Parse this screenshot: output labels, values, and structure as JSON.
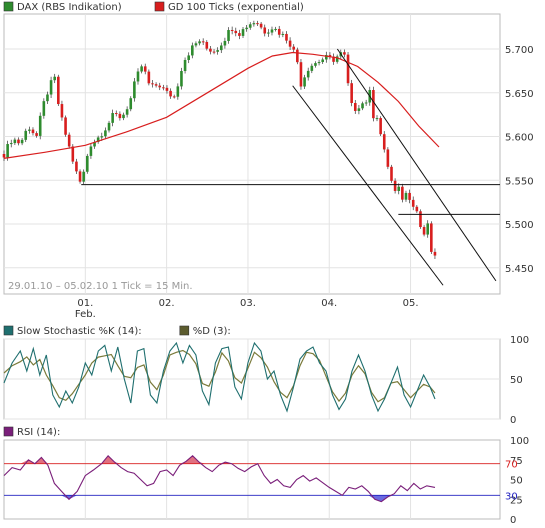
{
  "chart_data": [
    {
      "type": "candlestick",
      "legend": [
        {
          "label": "DAX (RBS Indikation)",
          "color": "#2e8b2e"
        },
        {
          "label": "GD 100 Ticks (exponential)",
          "color": "#d81e1e"
        }
      ],
      "caption": "29.01.10 – 05.02.10   1 Tick = 15 Min.",
      "ylim": [
        5420,
        5740
      ],
      "y_ticks": [
        5450,
        5500,
        5550,
        5600,
        5650,
        5700
      ],
      "y_tick_labels": [
        "5.450",
        "5.500",
        "5.550",
        "5.600",
        "5.650",
        "5.700"
      ],
      "x_ticks": [
        {
          "x": 1,
          "label": "01.",
          "sublabel": "Feb."
        },
        {
          "x": 2,
          "label": "02."
        },
        {
          "x": 3,
          "label": "03."
        },
        {
          "x": 4,
          "label": "04."
        },
        {
          "x": 5,
          "label": "05."
        }
      ],
      "xlim": [
        0,
        6.1
      ],
      "close_path": [
        [
          0.0,
          5580
        ],
        [
          0.1,
          5598
        ],
        [
          0.2,
          5592
        ],
        [
          0.3,
          5612
        ],
        [
          0.4,
          5600
        ],
        [
          0.48,
          5635
        ],
        [
          0.55,
          5655
        ],
        [
          0.62,
          5668
        ],
        [
          0.68,
          5630
        ],
        [
          0.75,
          5605
        ],
        [
          0.8,
          5588
        ],
        [
          0.9,
          5555
        ],
        [
          0.95,
          5545
        ],
        [
          1.05,
          5590
        ],
        [
          1.15,
          5598
        ],
        [
          1.25,
          5610
        ],
        [
          1.35,
          5625
        ],
        [
          1.45,
          5622
        ],
        [
          1.55,
          5640
        ],
        [
          1.62,
          5665
        ],
        [
          1.7,
          5682
        ],
        [
          1.8,
          5655
        ],
        [
          1.9,
          5660
        ],
        [
          2.0,
          5650
        ],
        [
          2.1,
          5645
        ],
        [
          2.2,
          5685
        ],
        [
          2.3,
          5700
        ],
        [
          2.4,
          5710
        ],
        [
          2.5,
          5700
        ],
        [
          2.6,
          5698
        ],
        [
          2.7,
          5710
        ],
        [
          2.8,
          5725
        ],
        [
          2.9,
          5718
        ],
        [
          3.0,
          5728
        ],
        [
          3.1,
          5732
        ],
        [
          3.2,
          5720
        ],
        [
          3.3,
          5725
        ],
        [
          3.4,
          5718
        ],
        [
          3.5,
          5710
        ],
        [
          3.6,
          5690
        ],
        [
          3.65,
          5660
        ],
        [
          3.75,
          5680
        ],
        [
          3.85,
          5685
        ],
        [
          3.95,
          5690
        ],
        [
          4.05,
          5688
        ],
        [
          4.15,
          5695
        ],
        [
          4.2,
          5690
        ],
        [
          4.25,
          5640
        ],
        [
          4.3,
          5630
        ],
        [
          4.35,
          5635
        ],
        [
          4.45,
          5640
        ],
        [
          4.5,
          5650
        ],
        [
          4.55,
          5620
        ],
        [
          4.6,
          5625
        ],
        [
          4.65,
          5590
        ],
        [
          4.7,
          5575
        ],
        [
          4.75,
          5555
        ],
        [
          4.8,
          5535
        ],
        [
          4.85,
          5540
        ],
        [
          4.9,
          5530
        ],
        [
          4.95,
          5535
        ],
        [
          5.0,
          5530
        ],
        [
          5.05,
          5520
        ],
        [
          5.1,
          5510
        ],
        [
          5.15,
          5480
        ],
        [
          5.2,
          5505
        ],
        [
          5.25,
          5470
        ],
        [
          5.3,
          5460
        ]
      ],
      "ema_path": [
        [
          0.0,
          5575
        ],
        [
          0.5,
          5582
        ],
        [
          1.0,
          5590
        ],
        [
          1.5,
          5605
        ],
        [
          2.0,
          5622
        ],
        [
          2.5,
          5650
        ],
        [
          3.0,
          5678
        ],
        [
          3.3,
          5692
        ],
        [
          3.55,
          5696
        ],
        [
          3.8,
          5694
        ],
        [
          4.1,
          5690
        ],
        [
          4.35,
          5680
        ],
        [
          4.6,
          5662
        ],
        [
          4.85,
          5640
        ],
        [
          5.1,
          5612
        ],
        [
          5.35,
          5588
        ]
      ],
      "horizontal_lines": [
        {
          "y": 5545,
          "x_from": 0.95,
          "x_to": 6.1
        },
        {
          "y": 5511,
          "x_from": 4.85,
          "x_to": 6.1
        }
      ],
      "trend_channel": [
        {
          "from": [
            3.55,
            5658
          ],
          "to": [
            5.4,
            5430
          ]
        },
        {
          "from": [
            4.1,
            5700
          ],
          "to": [
            6.05,
            5435
          ]
        }
      ]
    },
    {
      "type": "line",
      "legend": [
        {
          "label": "Slow Stochastic %K (14):",
          "color": "#1f6f6f"
        },
        {
          "label": "%D (3):",
          "color": "#5c5c2e"
        }
      ],
      "ylim": [
        0,
        100
      ],
      "y_ticks": [
        0,
        50,
        100
      ],
      "y_tick_labels": [
        "0",
        "50",
        "100"
      ],
      "xlim": [
        0,
        6.1
      ],
      "k_path": [
        [
          0.0,
          45
        ],
        [
          0.1,
          70
        ],
        [
          0.2,
          85
        ],
        [
          0.28,
          60
        ],
        [
          0.36,
          88
        ],
        [
          0.44,
          55
        ],
        [
          0.52,
          80
        ],
        [
          0.6,
          30
        ],
        [
          0.68,
          15
        ],
        [
          0.76,
          35
        ],
        [
          0.84,
          20
        ],
        [
          0.92,
          40
        ],
        [
          1.0,
          70
        ],
        [
          1.08,
          55
        ],
        [
          1.16,
          85
        ],
        [
          1.24,
          92
        ],
        [
          1.32,
          60
        ],
        [
          1.4,
          90
        ],
        [
          1.48,
          50
        ],
        [
          1.56,
          20
        ],
        [
          1.64,
          85
        ],
        [
          1.72,
          88
        ],
        [
          1.8,
          30
        ],
        [
          1.88,
          20
        ],
        [
          1.96,
          60
        ],
        [
          2.04,
          85
        ],
        [
          2.12,
          95
        ],
        [
          2.2,
          70
        ],
        [
          2.28,
          92
        ],
        [
          2.36,
          80
        ],
        [
          2.44,
          35
        ],
        [
          2.52,
          18
        ],
        [
          2.6,
          70
        ],
        [
          2.68,
          88
        ],
        [
          2.76,
          90
        ],
        [
          2.84,
          40
        ],
        [
          2.92,
          25
        ],
        [
          3.0,
          70
        ],
        [
          3.08,
          95
        ],
        [
          3.16,
          85
        ],
        [
          3.24,
          50
        ],
        [
          3.32,
          60
        ],
        [
          3.4,
          30
        ],
        [
          3.48,
          10
        ],
        [
          3.56,
          40
        ],
        [
          3.64,
          75
        ],
        [
          3.72,
          85
        ],
        [
          3.8,
          90
        ],
        [
          3.88,
          70
        ],
        [
          3.96,
          60
        ],
        [
          4.04,
          30
        ],
        [
          4.12,
          12
        ],
        [
          4.2,
          25
        ],
        [
          4.28,
          60
        ],
        [
          4.36,
          80
        ],
        [
          4.44,
          60
        ],
        [
          4.52,
          30
        ],
        [
          4.6,
          10
        ],
        [
          4.68,
          25
        ],
        [
          4.76,
          45
        ],
        [
          4.84,
          65
        ],
        [
          4.92,
          30
        ],
        [
          5.0,
          15
        ],
        [
          5.08,
          35
        ],
        [
          5.16,
          55
        ],
        [
          5.24,
          40
        ],
        [
          5.3,
          25
        ]
      ]
    },
    {
      "type": "line",
      "legend": [
        {
          "label": "RSI (14):",
          "color": "#7a1f7a"
        }
      ],
      "ylim": [
        0,
        100
      ],
      "y_ticks": [
        0,
        25,
        50,
        75,
        100
      ],
      "y_tick_labels": [
        "0",
        "25",
        "50",
        "75",
        "100"
      ],
      "reference_lines": [
        {
          "y": 70,
          "label": "70",
          "color": "#d81e1e"
        },
        {
          "y": 30,
          "label": "30",
          "color": "#2020c0"
        }
      ],
      "xlim": [
        0,
        6.1
      ],
      "rsi_path": [
        [
          0.0,
          55
        ],
        [
          0.1,
          65
        ],
        [
          0.2,
          62
        ],
        [
          0.3,
          75
        ],
        [
          0.38,
          70
        ],
        [
          0.46,
          78
        ],
        [
          0.54,
          68
        ],
        [
          0.62,
          45
        ],
        [
          0.7,
          36
        ],
        [
          0.8,
          25
        ],
        [
          0.9,
          35
        ],
        [
          1.0,
          55
        ],
        [
          1.1,
          62
        ],
        [
          1.2,
          70
        ],
        [
          1.28,
          80
        ],
        [
          1.36,
          72
        ],
        [
          1.44,
          65
        ],
        [
          1.52,
          60
        ],
        [
          1.6,
          58
        ],
        [
          1.68,
          50
        ],
        [
          1.76,
          42
        ],
        [
          1.84,
          45
        ],
        [
          1.92,
          60
        ],
        [
          2.0,
          62
        ],
        [
          2.08,
          55
        ],
        [
          2.16,
          68
        ],
        [
          2.24,
          73
        ],
        [
          2.32,
          80
        ],
        [
          2.4,
          72
        ],
        [
          2.48,
          65
        ],
        [
          2.56,
          60
        ],
        [
          2.64,
          68
        ],
        [
          2.72,
          72
        ],
        [
          2.8,
          70
        ],
        [
          2.88,
          64
        ],
        [
          2.96,
          60
        ],
        [
          3.04,
          66
        ],
        [
          3.12,
          70
        ],
        [
          3.2,
          55
        ],
        [
          3.28,
          45
        ],
        [
          3.36,
          50
        ],
        [
          3.44,
          42
        ],
        [
          3.52,
          40
        ],
        [
          3.6,
          50
        ],
        [
          3.68,
          55
        ],
        [
          3.76,
          48
        ],
        [
          3.84,
          52
        ],
        [
          3.92,
          46
        ],
        [
          4.0,
          40
        ],
        [
          4.08,
          35
        ],
        [
          4.16,
          30
        ],
        [
          4.24,
          40
        ],
        [
          4.32,
          38
        ],
        [
          4.4,
          42
        ],
        [
          4.48,
          35
        ],
        [
          4.56,
          25
        ],
        [
          4.64,
          22
        ],
        [
          4.72,
          28
        ],
        [
          4.8,
          32
        ],
        [
          4.88,
          42
        ],
        [
          4.96,
          36
        ],
        [
          5.04,
          45
        ],
        [
          5.12,
          38
        ],
        [
          5.2,
          42
        ],
        [
          5.3,
          40
        ]
      ]
    }
  ]
}
